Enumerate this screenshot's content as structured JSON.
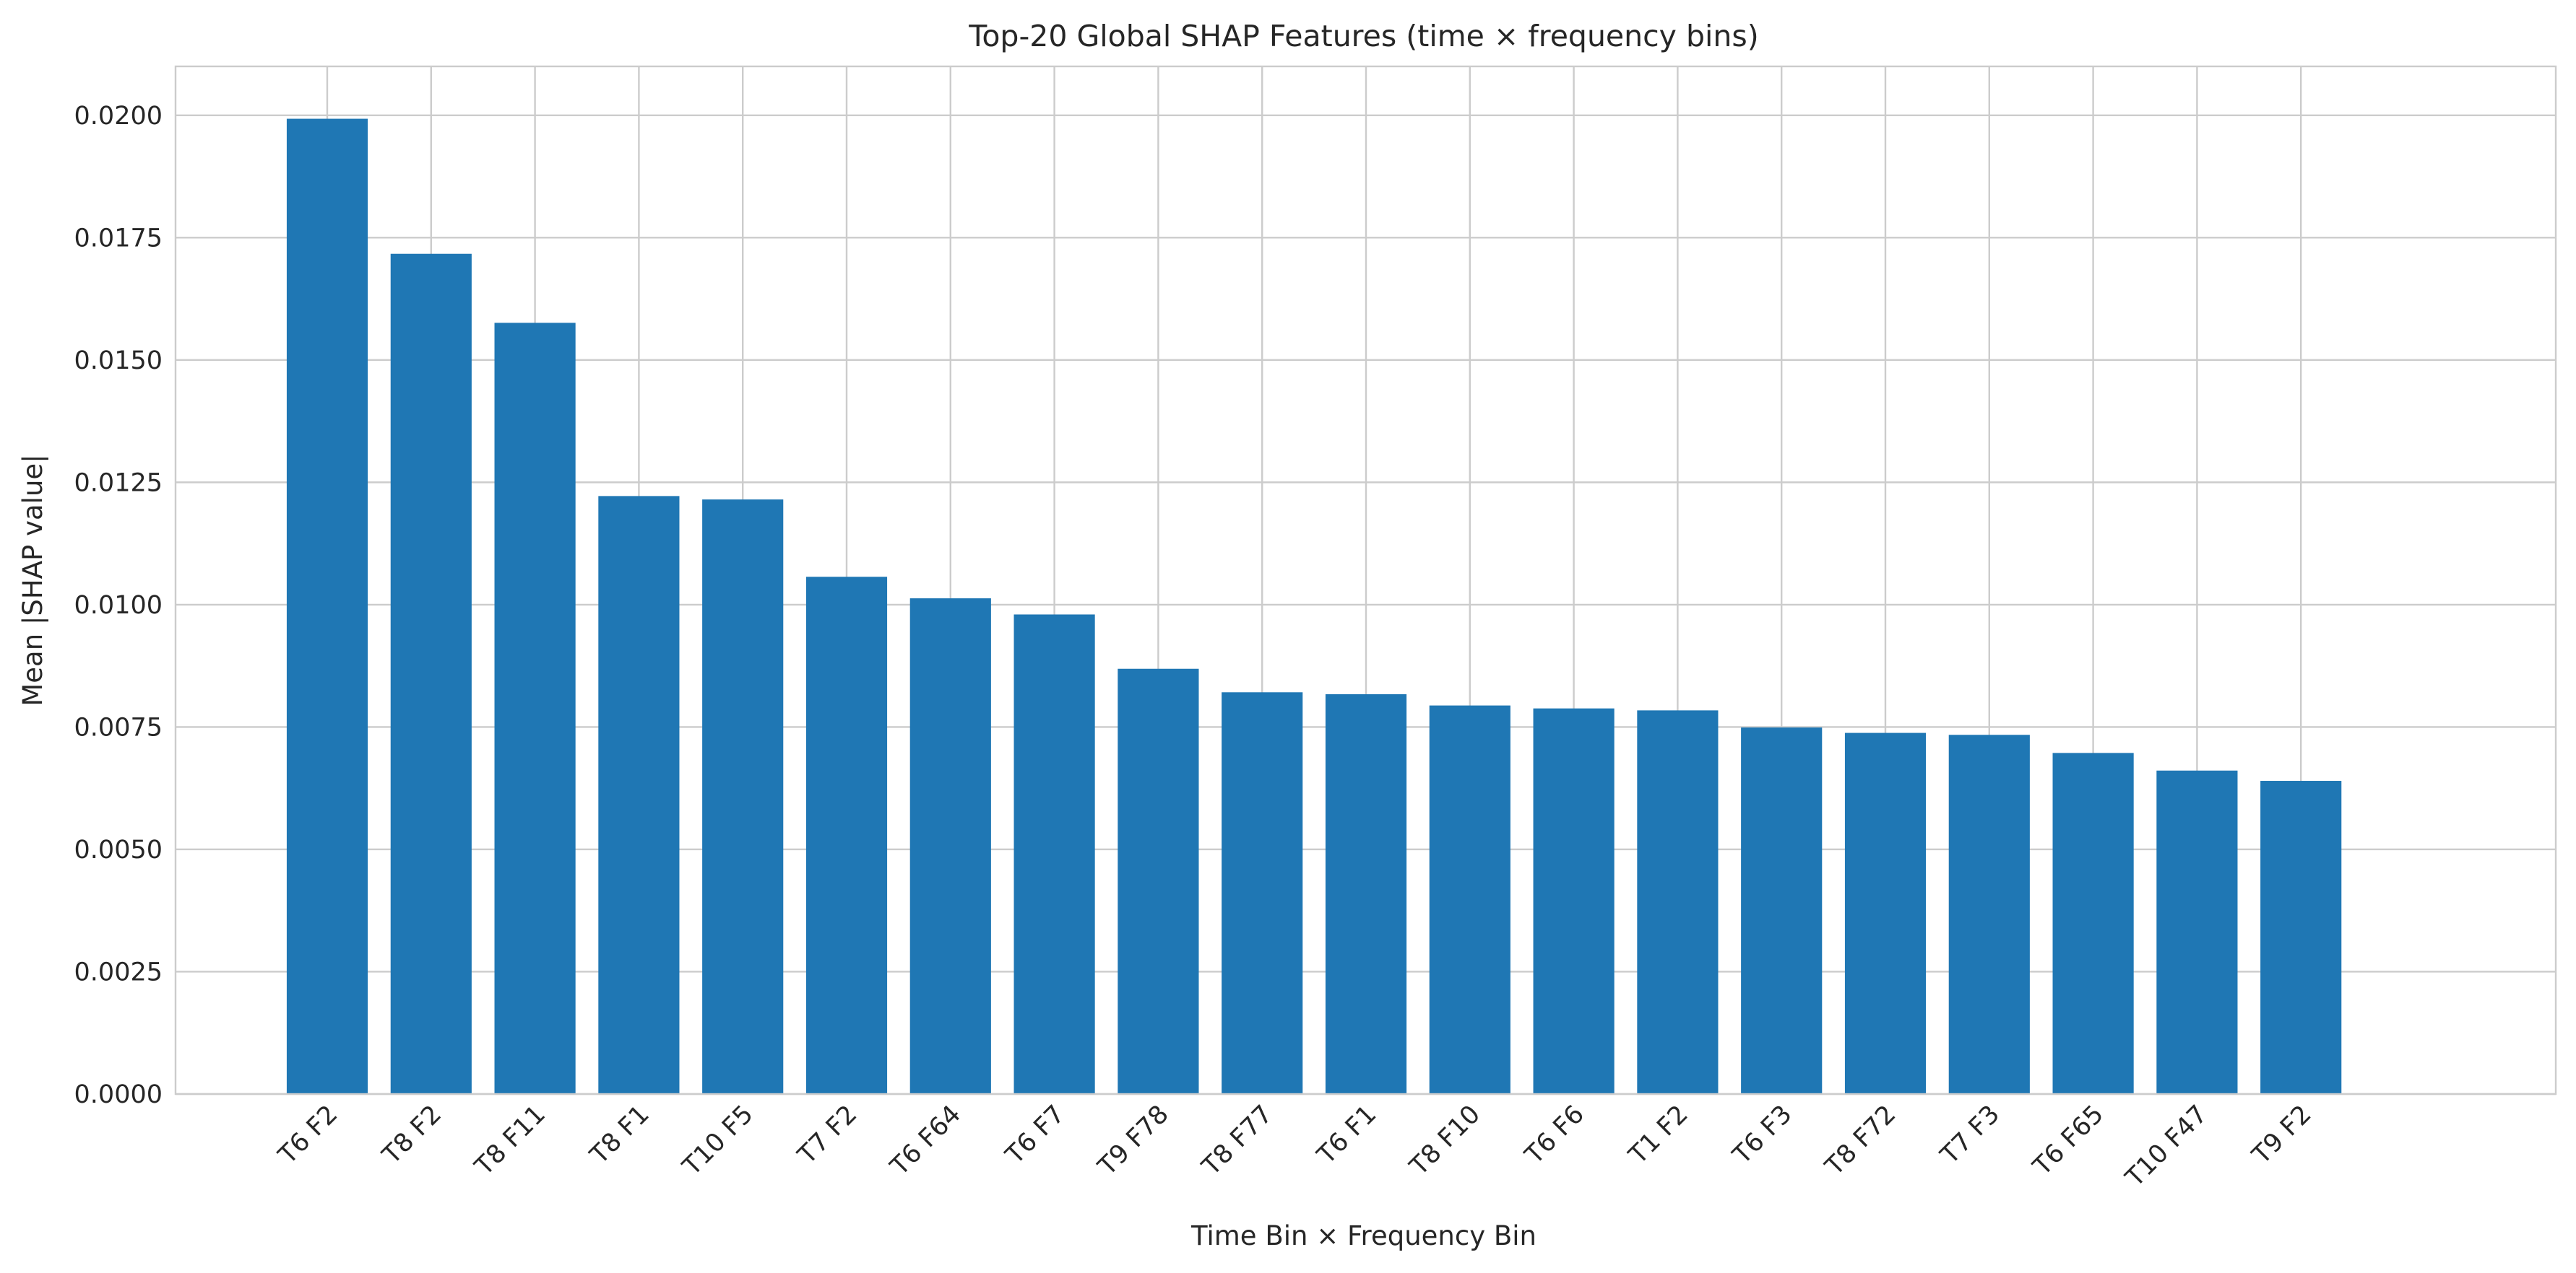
{
  "chart_data": {
    "type": "bar",
    "title": "Top-20 Global SHAP Features (time × frequency bins)",
    "xlabel": "Time Bin × Frequency Bin",
    "ylabel": "Mean |SHAP value|",
    "ylim": [
      0,
      0.021
    ],
    "yticks": [
      0,
      0.0025,
      0.005,
      0.0075,
      0.01,
      0.0125,
      0.015,
      0.0175,
      0.02
    ],
    "ytick_labels": [
      "0.0000",
      "0.0025",
      "0.0050",
      "0.0075",
      "0.0100",
      "0.0125",
      "0.0150",
      "0.0175",
      "0.0200"
    ],
    "grid": true,
    "bar_color": "#1f77b4",
    "categories": [
      "T6 F2",
      "T8 F2",
      "T8 F11",
      "T8 F1",
      "T10 F5",
      "T7 F2",
      "T6 F64",
      "T6 F7",
      "T9 F78",
      "T8 F77",
      "T6 F1",
      "T8 F10",
      "T6 F6",
      "T1 F2",
      "T6 F3",
      "T8 F72",
      "T7 F3",
      "T6 F65",
      "T10 F47",
      "T9 F2"
    ],
    "values": [
      0.01993,
      0.01717,
      0.01576,
      0.01222,
      0.01215,
      0.01057,
      0.01013,
      0.0098,
      0.00869,
      0.00821,
      0.00817,
      0.00794,
      0.00788,
      0.00784,
      0.00749,
      0.00738,
      0.00734,
      0.00697,
      0.00661,
      0.0064
    ]
  }
}
